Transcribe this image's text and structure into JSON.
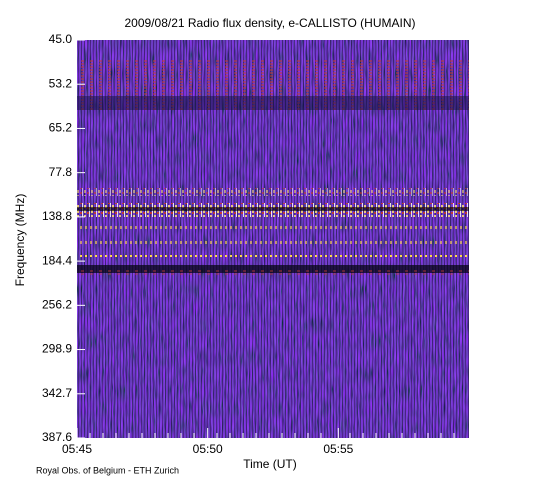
{
  "chart_data": {
    "type": "spectrogram",
    "title": "2009/08/21  Radio flux density, e-CALLISTO (HUMAIN)",
    "x_label": "Time (UT)",
    "y_label": "Frequency (MHz)",
    "footer": "Royal Obs. of Belgium - ETH Zurich",
    "xlim": [
      "05:45",
      "06:00"
    ],
    "xticks": [
      "05:45",
      "05:50",
      "05:55"
    ],
    "ylim": [
      45,
      387.6
    ],
    "yticks": [
      {
        "value": 45,
        "label": "45.0"
      },
      53.2,
      65.2,
      77.8,
      138.8,
      184.4,
      256.2,
      298.9,
      342.7,
      387.6
    ]
  }
}
